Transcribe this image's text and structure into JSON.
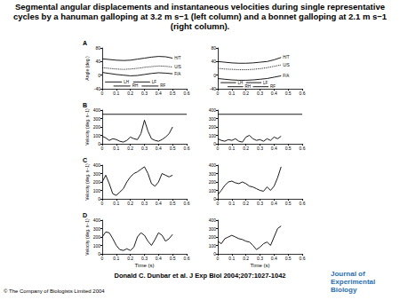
{
  "title": "Segmental angular displacements and instantaneous velocities during single representative cycles by a hanuman galloping at 3.2 m s−1 (left column) and a bonnet galloping at 2.1 m s−1 (right column).",
  "citation": "Donald C. Dunbar et al. J Exp Biol 2004;207:1027-1042",
  "copyright": "© The Company of Biologists Limited 2004",
  "logo": "Journal of Experimental Biology",
  "chart_data": [
    {
      "type": "line",
      "title": "A",
      "ylabel": "Angle (deg.)",
      "xlim": [
        0,
        0.6
      ],
      "xticks": [
        0,
        0.1,
        0.2,
        0.3,
        0.4,
        0.5,
        0.6
      ],
      "ylim": [
        -40,
        80
      ],
      "yticks": [
        -40,
        0,
        40,
        80
      ],
      "series": [
        {
          "name": "H/T",
          "color": "#000000",
          "line_style": "solid",
          "x": [
            0,
            0.05,
            0.1,
            0.15,
            0.2,
            0.25,
            0.3,
            0.35,
            0.4,
            0.45,
            0.5
          ],
          "values": [
            48,
            46,
            44,
            43,
            44,
            47,
            50,
            53,
            55,
            54,
            50
          ]
        },
        {
          "name": "U/S",
          "color": "#000000",
          "line_style": "dotted",
          "x": [
            0,
            0.05,
            0.1,
            0.15,
            0.2,
            0.25,
            0.3,
            0.35,
            0.4,
            0.45,
            0.5
          ],
          "values": [
            22,
            20,
            18,
            17,
            18,
            20,
            23,
            25,
            27,
            26,
            24
          ]
        },
        {
          "name": "F/A",
          "color": "#000000",
          "line_style": "solid",
          "x": [
            0,
            0.05,
            0.1,
            0.15,
            0.2,
            0.25,
            0.3,
            0.35,
            0.4,
            0.45,
            0.5
          ],
          "values": [
            8,
            5,
            2,
            0,
            -2,
            -1,
            2,
            5,
            7,
            6,
            4
          ]
        },
        {
          "name": "LH",
          "color": "#000000",
          "line_style": "solid",
          "x": [
            0.02,
            0.14
          ],
          "values": [
            -20,
            -20
          ]
        },
        {
          "name": "LF",
          "color": "#000000",
          "line_style": "solid",
          "x": [
            0.22,
            0.34
          ],
          "values": [
            -20,
            -20
          ]
        },
        {
          "name": "RH",
          "color": "#000000",
          "line_style": "solid",
          "x": [
            0.08,
            0.2
          ],
          "values": [
            -32,
            -32
          ]
        },
        {
          "name": "RF",
          "color": "#000000",
          "line_style": "solid",
          "x": [
            0.28,
            0.4
          ],
          "values": [
            -32,
            -32
          ]
        }
      ]
    },
    {
      "type": "line",
      "xlim": [
        0,
        0.6
      ],
      "xticks": [
        0,
        0.1,
        0.2,
        0.3,
        0.4,
        0.5,
        0.6
      ],
      "ylim": [
        -40,
        80
      ],
      "yticks": [
        -40,
        0,
        40,
        80
      ],
      "series": [
        {
          "name": "H/T",
          "color": "#000000",
          "line_style": "solid",
          "x": [
            0,
            0.05,
            0.1,
            0.15,
            0.2,
            0.25,
            0.3,
            0.35,
            0.4,
            0.45
          ],
          "values": [
            40,
            38,
            36,
            35,
            35,
            36,
            38,
            40,
            45,
            52
          ]
        },
        {
          "name": "U/S",
          "color": "#000000",
          "line_style": "dotted",
          "x": [
            0,
            0.05,
            0.1,
            0.15,
            0.2,
            0.25,
            0.3,
            0.35,
            0.4,
            0.45
          ],
          "values": [
            20,
            18,
            17,
            16,
            16,
            17,
            19,
            22,
            26,
            30
          ]
        },
        {
          "name": "F/A",
          "color": "#000000",
          "line_style": "solid",
          "x": [
            0,
            0.05,
            0.1,
            0.15,
            0.2,
            0.25,
            0.3,
            0.35,
            0.4,
            0.45
          ],
          "values": [
            -10,
            -12,
            -14,
            -15,
            -15,
            -14,
            -12,
            -10,
            -6,
            -2
          ]
        },
        {
          "name": "LH",
          "color": "#000000",
          "line_style": "solid",
          "x": [
            0.02,
            0.13
          ],
          "values": [
            -22,
            -22
          ]
        },
        {
          "name": "LF",
          "color": "#000000",
          "line_style": "solid",
          "x": [
            0.2,
            0.31
          ],
          "values": [
            -22,
            -22
          ]
        },
        {
          "name": "RH",
          "color": "#000000",
          "line_style": "solid",
          "x": [
            0.07,
            0.18
          ],
          "values": [
            -34,
            -34
          ]
        },
        {
          "name": "RF",
          "color": "#000000",
          "line_style": "solid",
          "x": [
            0.25,
            0.36
          ],
          "values": [
            -34,
            -34
          ]
        }
      ]
    },
    {
      "type": "line",
      "title": "B",
      "ylabel": "Velocity (deg. s−1)",
      "xlim": [
        0,
        0.6
      ],
      "xticks": [
        0,
        0.1,
        0.2,
        0.3,
        0.4,
        0.5,
        0.6
      ],
      "ylim": [
        0,
        400
      ],
      "yticks": [
        0,
        100,
        200,
        300,
        400
      ],
      "series": [
        {
          "color": "#000000",
          "line_style": "solid",
          "x": [
            0,
            0.6
          ],
          "values": [
            350,
            350
          ]
        },
        {
          "color": "#000000",
          "line_style": "solid",
          "x": [
            0,
            0.025,
            0.05,
            0.075,
            0.1,
            0.125,
            0.15,
            0.175,
            0.2,
            0.225,
            0.25,
            0.275,
            0.3,
            0.325,
            0.35,
            0.375,
            0.4,
            0.425,
            0.45,
            0.475,
            0.5
          ],
          "values": [
            90,
            70,
            40,
            60,
            50,
            30,
            20,
            40,
            80,
            60,
            50,
            120,
            280,
            150,
            60,
            40,
            30,
            50,
            80,
            120,
            200
          ]
        }
      ]
    },
    {
      "type": "line",
      "xlim": [
        0,
        0.6
      ],
      "xticks": [
        0,
        0.1,
        0.2,
        0.3,
        0.4,
        0.5,
        0.6
      ],
      "ylim": [
        0,
        400
      ],
      "yticks": [
        0,
        100,
        200,
        300,
        400
      ],
      "series": [
        {
          "color": "#000000",
          "line_style": "solid",
          "x": [
            0,
            0.6
          ],
          "values": [
            350,
            350
          ]
        },
        {
          "color": "#000000",
          "line_style": "solid",
          "x": [
            0,
            0.025,
            0.05,
            0.075,
            0.1,
            0.125,
            0.15,
            0.175,
            0.2,
            0.225,
            0.25,
            0.275,
            0.3,
            0.325,
            0.35,
            0.375,
            0.4,
            0.425,
            0.45
          ],
          "values": [
            60,
            40,
            30,
            50,
            40,
            60,
            30,
            20,
            80,
            100,
            60,
            40,
            50,
            30,
            60,
            40,
            80,
            60,
            90
          ]
        }
      ]
    },
    {
      "type": "line",
      "title": "C",
      "ylabel": "Velocity (deg. s−1)",
      "xlim": [
        0,
        0.6
      ],
      "xticks": [
        0,
        0.1,
        0.2,
        0.3,
        0.4,
        0.5,
        0.6
      ],
      "ylim": [
        0,
        400
      ],
      "yticks": [
        0,
        100,
        200,
        300,
        400
      ],
      "series": [
        {
          "color": "#000000",
          "line_style": "solid",
          "x": [
            0,
            0.025,
            0.05,
            0.075,
            0.1,
            0.125,
            0.15,
            0.175,
            0.2,
            0.225,
            0.25,
            0.275,
            0.3,
            0.325,
            0.35,
            0.375,
            0.4,
            0.425,
            0.45,
            0.475,
            0.5
          ],
          "values": [
            200,
            280,
            180,
            60,
            40,
            80,
            120,
            200,
            260,
            300,
            320,
            350,
            380,
            300,
            180,
            150,
            200,
            300,
            280,
            260,
            280
          ]
        }
      ]
    },
    {
      "type": "line",
      "xlim": [
        0,
        0.6
      ],
      "xticks": [
        0,
        0.1,
        0.2,
        0.3,
        0.4,
        0.5,
        0.6
      ],
      "ylim": [
        0,
        400
      ],
      "yticks": [
        0,
        100,
        200,
        300,
        400
      ],
      "series": [
        {
          "color": "#000000",
          "line_style": "solid",
          "x": [
            0,
            0.025,
            0.05,
            0.075,
            0.1,
            0.125,
            0.15,
            0.175,
            0.2,
            0.225,
            0.25,
            0.275,
            0.3,
            0.325,
            0.35,
            0.375,
            0.4,
            0.425,
            0.45
          ],
          "values": [
            50,
            100,
            160,
            200,
            210,
            190,
            180,
            200,
            180,
            150,
            140,
            120,
            100,
            90,
            140,
            100,
            150,
            250,
            380
          ]
        }
      ]
    },
    {
      "type": "line",
      "title": "D",
      "ylabel": "Velocity (deg. s−1)",
      "xlabel": "Time (s)",
      "xlim": [
        0,
        0.6
      ],
      "xticks": [
        0,
        0.1,
        0.2,
        0.3,
        0.4,
        0.5,
        0.6
      ],
      "ylim": [
        0,
        400
      ],
      "yticks": [
        0,
        100,
        200,
        300,
        400
      ],
      "series": [
        {
          "color": "#000000",
          "line_style": "solid",
          "x": [
            0,
            0.025,
            0.05,
            0.075,
            0.1,
            0.125,
            0.15,
            0.175,
            0.2,
            0.225,
            0.25,
            0.275,
            0.3,
            0.325,
            0.35,
            0.375,
            0.4,
            0.425,
            0.45,
            0.475,
            0.5
          ],
          "values": [
            200,
            260,
            250,
            180,
            100,
            50,
            40,
            60,
            40,
            80,
            200,
            250,
            220,
            150,
            100,
            170,
            250,
            220,
            150,
            180,
            230
          ]
        }
      ]
    },
    {
      "type": "line",
      "xlabel": "Time (s)",
      "xlim": [
        0,
        0.6
      ],
      "xticks": [
        0,
        0.1,
        0.2,
        0.3,
        0.4,
        0.5,
        0.6
      ],
      "ylim": [
        0,
        400
      ],
      "yticks": [
        0,
        100,
        200,
        300,
        400
      ],
      "series": [
        {
          "color": "#000000",
          "line_style": "solid",
          "x": [
            0,
            0.025,
            0.05,
            0.075,
            0.1,
            0.125,
            0.15,
            0.175,
            0.2,
            0.225,
            0.25,
            0.275,
            0.3,
            0.325,
            0.35,
            0.375,
            0.4,
            0.425,
            0.45
          ],
          "values": [
            150,
            120,
            180,
            200,
            220,
            200,
            180,
            170,
            150,
            140,
            100,
            50,
            80,
            120,
            140,
            100,
            200,
            300,
            330
          ]
        }
      ]
    }
  ]
}
